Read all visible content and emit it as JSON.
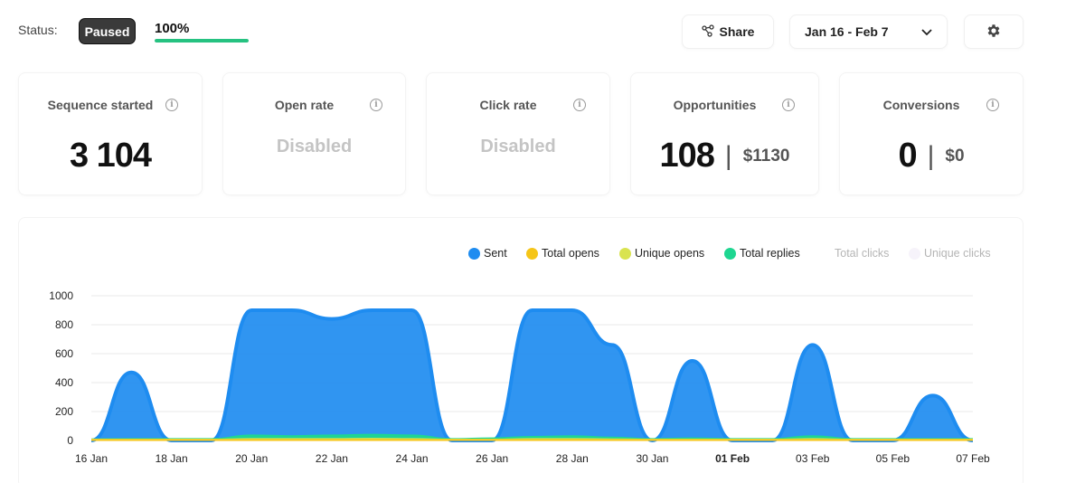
{
  "header": {
    "status_label": "Status:",
    "status_badge": "Paused",
    "progress_text": "100%",
    "progress_value": 100,
    "progress_color": "#26c281",
    "share_label": "Share",
    "share_icon": "share-icon",
    "date_range": "Jan 16 - Feb 7",
    "dropdown_icon": "chevron-down-icon",
    "settings_icon": "gear-icon"
  },
  "cards": [
    {
      "title": "Sequence started",
      "value": "3 104"
    },
    {
      "title": "Open rate",
      "value": "Disabled"
    },
    {
      "title": "Click rate",
      "value": "Disabled"
    },
    {
      "title": "Opportunities",
      "value": "108",
      "amount": "$1130"
    },
    {
      "title": "Conversions",
      "value": "0",
      "amount": "$0"
    }
  ],
  "legend": [
    {
      "label": "Sent",
      "color": "#1e8cf0"
    },
    {
      "label": "Total opens",
      "color": "#f5c518"
    },
    {
      "label": "Unique opens",
      "color": "#d9e34f"
    },
    {
      "label": "Total replies",
      "color": "#1ed691"
    },
    {
      "label": "Total clicks",
      "color": ""
    },
    {
      "label": "Unique clicks",
      "color": "#f6f3fa"
    }
  ],
  "chart_data": {
    "type": "area",
    "categories": [
      "16 Jan",
      "17 Jan",
      "18 Jan",
      "19 Jan",
      "20 Jan",
      "21 Jan",
      "22 Jan",
      "23 Jan",
      "24 Jan",
      "25 Jan",
      "26 Jan",
      "27 Jan",
      "28 Jan",
      "29 Jan",
      "30 Jan",
      "31 Jan",
      "01 Feb",
      "02 Feb",
      "03 Feb",
      "04 Feb",
      "05 Feb",
      "06 Feb",
      "07 Feb"
    ],
    "tick_labels": [
      "16 Jan",
      "18 Jan",
      "20 Jan",
      "22 Jan",
      "24 Jan",
      "26 Jan",
      "28 Jan",
      "30 Jan",
      "01 Feb",
      "03 Feb",
      "05 Feb",
      "07 Feb"
    ],
    "bold_tick": "01 Feb",
    "ylim": [
      0,
      1000
    ],
    "yticks": [
      0,
      200,
      400,
      600,
      800,
      1000
    ],
    "grid": true,
    "legend_position": "top-right",
    "series": [
      {
        "name": "Sent",
        "color": "#1e8cf0",
        "values": [
          0,
          470,
          0,
          0,
          900,
          900,
          840,
          900,
          900,
          0,
          0,
          900,
          900,
          660,
          0,
          550,
          0,
          0,
          660,
          0,
          0,
          310,
          0
        ]
      },
      {
        "name": "Total replies",
        "color": "#1ed691",
        "values": [
          8,
          10,
          10,
          10,
          35,
          30,
          35,
          40,
          35,
          10,
          15,
          25,
          30,
          20,
          10,
          15,
          10,
          10,
          30,
          10,
          10,
          10,
          10
        ]
      },
      {
        "name": "Unique opens",
        "color": "#d9e34f",
        "values": [
          6,
          6,
          6,
          6,
          10,
          10,
          10,
          12,
          10,
          6,
          6,
          10,
          10,
          8,
          6,
          6,
          6,
          6,
          10,
          6,
          6,
          6,
          6
        ]
      },
      {
        "name": "Total opens",
        "color": "#f5c518",
        "values": [
          3,
          3,
          3,
          3,
          3,
          3,
          3,
          3,
          3,
          3,
          3,
          3,
          3,
          3,
          3,
          3,
          3,
          3,
          3,
          3,
          3,
          3,
          3
        ]
      }
    ]
  }
}
